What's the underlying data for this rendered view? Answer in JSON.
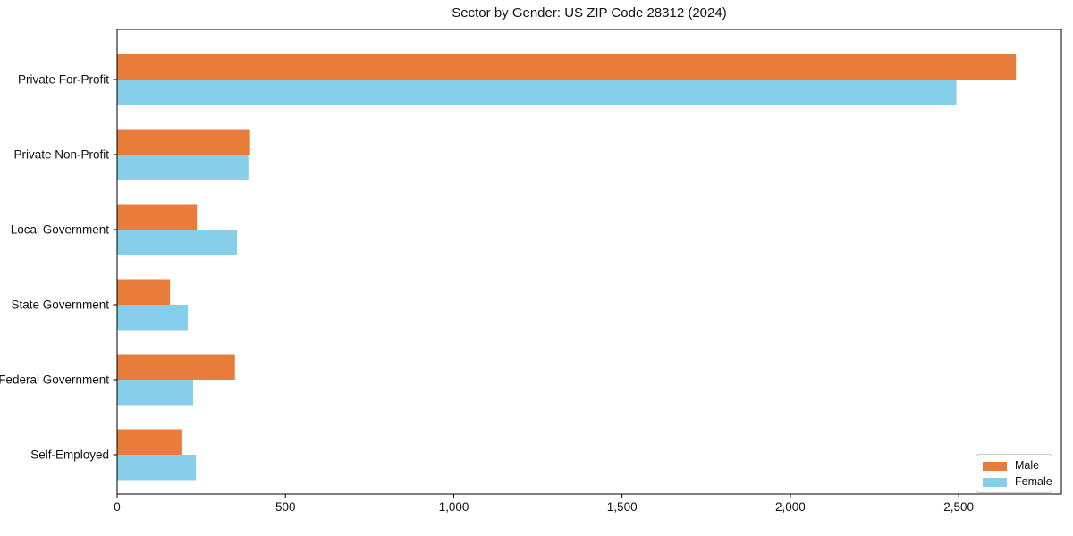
{
  "chart_data": {
    "type": "bar",
    "orientation": "horizontal",
    "title": "Sector by Gender: US ZIP Code 28312 (2024)",
    "categories": [
      "Private For-Profit",
      "Private Non-Profit",
      "Local Government",
      "State Government",
      "Federal Government",
      "Self-Employed"
    ],
    "series": [
      {
        "name": "Male",
        "color": "#E87D3B",
        "values": [
          2670,
          395,
          237,
          157,
          350,
          191
        ]
      },
      {
        "name": "Female",
        "color": "#87CEEB",
        "values": [
          2493,
          390,
          356,
          210,
          226,
          234
        ]
      }
    ],
    "xlabel": "",
    "ylabel": "",
    "x_ticks": [
      0,
      500,
      1000,
      1500,
      2000,
      2500
    ],
    "x_tick_labels": [
      "0",
      "500",
      "1,000",
      "1,500",
      "2,000",
      "2,500"
    ],
    "xlim": [
      0,
      2805
    ],
    "grid": false,
    "legend": {
      "position": "lower right",
      "entries": [
        "Male",
        "Female"
      ]
    },
    "axis_color": "#000000",
    "background_color": "#ffffff"
  }
}
